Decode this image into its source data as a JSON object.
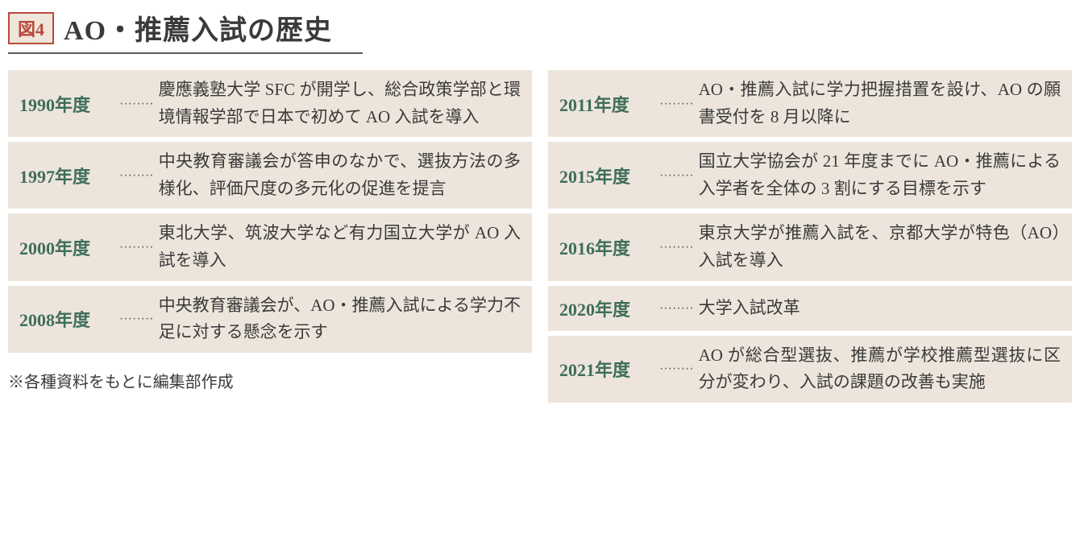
{
  "figure_label": "図4",
  "title": "AO・推薦入試の歴史",
  "footnote": "※各種資料をもとに編集部作成",
  "dots": "········",
  "colors": {
    "accent_red": "#b84a3a",
    "accent_green": "#3f6e5a",
    "row_bg": "#ede5dc",
    "label_bg": "#f0e5db",
    "text": "#3a3a3a",
    "underline": "#5a5a5a"
  },
  "left_column": [
    {
      "year": "1990年度",
      "desc": "慶應義塾大学 SFC が開学し、総合政策学部と環境情報学部で日本で初めて AO 入試を導入"
    },
    {
      "year": "1997年度",
      "desc": "中央教育審議会が答申のなかで、選抜方法の多様化、評価尺度の多元化の促進を提言"
    },
    {
      "year": "2000年度",
      "desc": "東北大学、筑波大学など有力国立大学が AO 入試を導入"
    },
    {
      "year": "2008年度",
      "desc": "中央教育審議会が、AO・推薦入試による学力不足に対する懸念を示す"
    }
  ],
  "right_column": [
    {
      "year": "2011年度",
      "desc": "AO・推薦入試に学力把握措置を設け、AO の願書受付を 8 月以降に"
    },
    {
      "year": "2015年度",
      "desc": "国立大学協会が 21 年度までに AO・推薦による入学者を全体の 3 割にする目標を示す"
    },
    {
      "year": "2016年度",
      "desc": "東京大学が推薦入試を、京都大学が特色（AO）入試を導入"
    },
    {
      "year": "2020年度",
      "desc": "大学入試改革"
    },
    {
      "year": "2021年度",
      "desc": "AO が総合型選抜、推薦が学校推薦型選抜に区分が変わり、入試の課題の改善も実施"
    }
  ]
}
